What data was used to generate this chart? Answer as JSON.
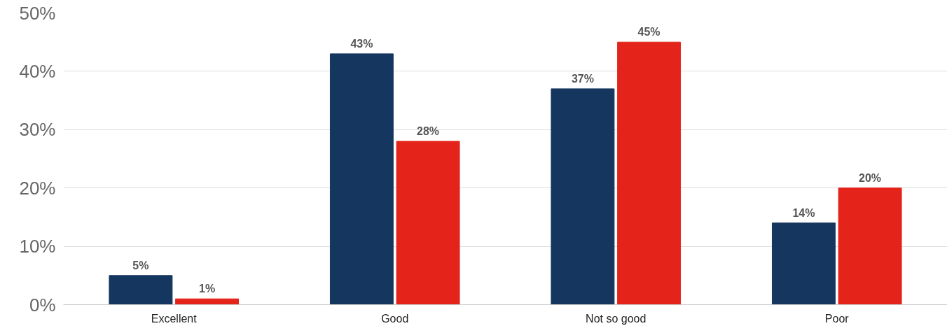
{
  "chart_data": {
    "type": "bar",
    "categories": [
      "Excellent",
      "Good",
      "Not so good",
      "Poor"
    ],
    "series": [
      {
        "color": "#15365f",
        "values": [
          5,
          43,
          37,
          14
        ],
        "value_labels": [
          "5%",
          "43%",
          "37%",
          "14%"
        ]
      },
      {
        "color": "#e4231b",
        "values": [
          1,
          28,
          45,
          20
        ],
        "value_labels": [
          "1%",
          "28%",
          "45%",
          "20%"
        ]
      }
    ],
    "ylim": [
      0,
      50
    ],
    "yticks": [
      {
        "value": 0,
        "label": "0%"
      },
      {
        "value": 10,
        "label": "10%"
      },
      {
        "value": 20,
        "label": "20%"
      },
      {
        "value": 30,
        "label": "30%"
      },
      {
        "value": 40,
        "label": "40%"
      },
      {
        "value": 50,
        "label": "50%"
      }
    ],
    "grid": "y"
  }
}
